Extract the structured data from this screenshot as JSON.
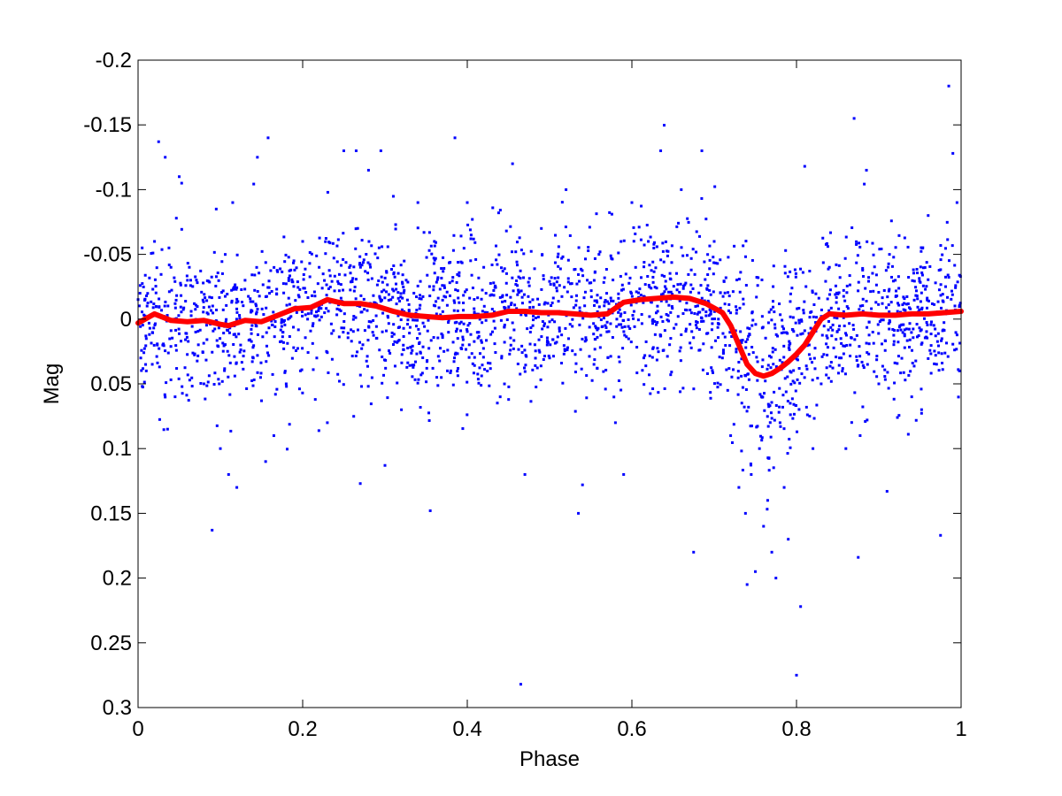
{
  "chart_data": {
    "type": "scatter",
    "title": "",
    "xlabel": "Phase",
    "ylabel": "Mag",
    "xlim": [
      0,
      1
    ],
    "ylim": [
      -0.2,
      0.3
    ],
    "y_reversed": true,
    "grid": false,
    "xticks": [
      {
        "value": 0,
        "label": "0"
      },
      {
        "value": 0.2,
        "label": "0.2"
      },
      {
        "value": 0.4,
        "label": "0.4"
      },
      {
        "value": 0.6,
        "label": "0.6"
      },
      {
        "value": 0.8,
        "label": "0.8"
      },
      {
        "value": 1,
        "label": "1"
      }
    ],
    "yticks": [
      {
        "value": -0.2,
        "label": "-0.2"
      },
      {
        "value": -0.15,
        "label": "-0.15"
      },
      {
        "value": -0.1,
        "label": "-0.1"
      },
      {
        "value": -0.05,
        "label": "-0.05"
      },
      {
        "value": 0,
        "label": "0"
      },
      {
        "value": 0.05,
        "label": "0.05"
      },
      {
        "value": 0.1,
        "label": "0.1"
      },
      {
        "value": 0.15,
        "label": "0.15"
      },
      {
        "value": 0.2,
        "label": "0.2"
      },
      {
        "value": 0.25,
        "label": "0.25"
      },
      {
        "value": 0.3,
        "label": "0.3"
      }
    ],
    "colors": {
      "points": "#0000ff",
      "curve": "#ff0000",
      "axes": "#000000"
    },
    "series": [
      {
        "kind": "scatter",
        "points": [
          [
            0.005,
            -0.055
          ],
          [
            0.02,
            -0.06
          ],
          [
            0.025,
            -0.137
          ],
          [
            0.033,
            -0.125
          ],
          [
            0.05,
            -0.11
          ],
          [
            0.053,
            -0.105
          ],
          [
            0.04,
            -0.04
          ],
          [
            0.06,
            -0.03
          ],
          [
            0.07,
            0.01
          ],
          [
            0.03,
            0.02
          ],
          [
            0.01,
            0.04
          ],
          [
            0.045,
            0.06
          ],
          [
            0.08,
            0.05
          ],
          [
            0.1,
            0.1
          ],
          [
            0.09,
            0.163
          ],
          [
            0.11,
            0.12
          ],
          [
            0.12,
            0.13
          ],
          [
            0.115,
            -0.09
          ],
          [
            0.095,
            -0.085
          ],
          [
            0.13,
            -0.03
          ],
          [
            0.14,
            0.03
          ],
          [
            0.145,
            -0.125
          ],
          [
            0.158,
            -0.14
          ],
          [
            0.155,
            0.11
          ],
          [
            0.165,
            0.09
          ],
          [
            0.18,
            0.05
          ],
          [
            0.2,
            -0.06
          ],
          [
            0.22,
            -0.04
          ],
          [
            0.25,
            -0.13
          ],
          [
            0.265,
            -0.13
          ],
          [
            0.28,
            -0.115
          ],
          [
            0.295,
            -0.13
          ],
          [
            0.23,
            0.08
          ],
          [
            0.27,
            0.127
          ],
          [
            0.3,
            0.113
          ],
          [
            0.32,
            0.07
          ],
          [
            0.34,
            -0.09
          ],
          [
            0.36,
            -0.06
          ],
          [
            0.355,
            0.148
          ],
          [
            0.38,
            0.04
          ],
          [
            0.385,
            -0.14
          ],
          [
            0.4,
            -0.09
          ],
          [
            0.42,
            -0.04
          ],
          [
            0.44,
            0.06
          ],
          [
            0.455,
            -0.12
          ],
          [
            0.465,
            0.282
          ],
          [
            0.47,
            0.12
          ],
          [
            0.49,
            -0.07
          ],
          [
            0.5,
            0.03
          ],
          [
            0.52,
            -0.1
          ],
          [
            0.535,
            0.15
          ],
          [
            0.54,
            0.128
          ],
          [
            0.56,
            -0.05
          ],
          [
            0.58,
            0.08
          ],
          [
            0.59,
            0.12
          ],
          [
            0.6,
            -0.09
          ],
          [
            0.62,
            -0.06
          ],
          [
            0.635,
            -0.13
          ],
          [
            0.66,
            -0.1
          ],
          [
            0.675,
            0.18
          ],
          [
            0.685,
            -0.13
          ],
          [
            0.7,
            -0.06
          ],
          [
            0.71,
            0.03
          ],
          [
            0.72,
            0.09
          ],
          [
            0.73,
            0.13
          ],
          [
            0.738,
            0.15
          ],
          [
            0.74,
            0.205
          ],
          [
            0.745,
            0.12
          ],
          [
            0.75,
            0.195
          ],
          [
            0.755,
            0.1
          ],
          [
            0.76,
            0.16
          ],
          [
            0.765,
            0.14
          ],
          [
            0.77,
            0.18
          ],
          [
            0.775,
            0.2
          ],
          [
            0.78,
            0.08
          ],
          [
            0.785,
            0.13
          ],
          [
            0.79,
            0.17
          ],
          [
            0.8,
            0.275
          ],
          [
            0.805,
            0.222
          ],
          [
            0.81,
            -0.118
          ],
          [
            0.82,
            0.1
          ],
          [
            0.83,
            0.05
          ],
          [
            0.84,
            -0.04
          ],
          [
            0.86,
            0.1
          ],
          [
            0.87,
            -0.155
          ],
          [
            0.875,
            0.184
          ],
          [
            0.885,
            -0.115
          ],
          [
            0.9,
            0.05
          ],
          [
            0.91,
            0.133
          ],
          [
            0.92,
            -0.03
          ],
          [
            0.94,
            0.06
          ],
          [
            0.96,
            -0.08
          ],
          [
            0.975,
            0.167
          ],
          [
            0.985,
            -0.18
          ],
          [
            0.99,
            -0.128
          ],
          [
            0.995,
            -0.09
          ],
          [
            0.998,
            0.04
          ]
        ]
      },
      {
        "kind": "line",
        "points": [
          [
            0,
            0.003
          ],
          [
            0.02,
            -0.004
          ],
          [
            0.04,
            0.001
          ],
          [
            0.06,
            0.002
          ],
          [
            0.08,
            0.001
          ],
          [
            0.1,
            0.004
          ],
          [
            0.11,
            0.005
          ],
          [
            0.13,
            0.001
          ],
          [
            0.15,
            0.002
          ],
          [
            0.17,
            -0.003
          ],
          [
            0.19,
            -0.008
          ],
          [
            0.21,
            -0.009
          ],
          [
            0.23,
            -0.015
          ],
          [
            0.25,
            -0.012
          ],
          [
            0.27,
            -0.012
          ],
          [
            0.29,
            -0.01
          ],
          [
            0.31,
            -0.006
          ],
          [
            0.33,
            -0.003
          ],
          [
            0.35,
            -0.002
          ],
          [
            0.37,
            -0.001
          ],
          [
            0.39,
            -0.002
          ],
          [
            0.41,
            -0.002
          ],
          [
            0.43,
            -0.003
          ],
          [
            0.45,
            -0.006
          ],
          [
            0.47,
            -0.006
          ],
          [
            0.49,
            -0.005
          ],
          [
            0.51,
            -0.005
          ],
          [
            0.53,
            -0.004
          ],
          [
            0.55,
            -0.003
          ],
          [
            0.57,
            -0.004
          ],
          [
            0.59,
            -0.013
          ],
          [
            0.61,
            -0.015
          ],
          [
            0.63,
            -0.016
          ],
          [
            0.65,
            -0.017
          ],
          [
            0.67,
            -0.016
          ],
          [
            0.69,
            -0.012
          ],
          [
            0.71,
            -0.005
          ],
          [
            0.72,
            0.005
          ],
          [
            0.73,
            0.02
          ],
          [
            0.74,
            0.035
          ],
          [
            0.75,
            0.042
          ],
          [
            0.76,
            0.044
          ],
          [
            0.77,
            0.042
          ],
          [
            0.78,
            0.038
          ],
          [
            0.79,
            0.033
          ],
          [
            0.8,
            0.027
          ],
          [
            0.81,
            0.02
          ],
          [
            0.82,
            0.01
          ],
          [
            0.83,
            0.0
          ],
          [
            0.84,
            -0.004
          ],
          [
            0.86,
            -0.003
          ],
          [
            0.88,
            -0.004
          ],
          [
            0.9,
            -0.003
          ],
          [
            0.92,
            -0.003
          ],
          [
            0.94,
            -0.004
          ],
          [
            0.96,
            -0.004
          ],
          [
            0.98,
            -0.005
          ],
          [
            1,
            -0.006
          ]
        ]
      }
    ]
  }
}
